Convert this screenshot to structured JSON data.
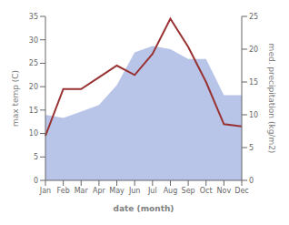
{
  "chart_data": {
    "type": "line",
    "xlabel": "date (month)",
    "ylabel": "max temp (C)",
    "y2label": "med. precipitation (kg/m2)",
    "categories": [
      "Jan",
      "Feb",
      "Mar",
      "Apr",
      "May",
      "Jun",
      "Jul",
      "Aug",
      "Sep",
      "Oct",
      "Nov",
      "Dec"
    ],
    "series": [
      {
        "type": "area",
        "axis": "y2",
        "color": "#b8c4e8",
        "values": [
          10.0,
          9.5,
          10.5,
          11.5,
          14.5,
          19.5,
          20.5,
          20.0,
          18.5,
          18.5,
          13.0,
          13.0
        ]
      },
      {
        "type": "line",
        "color": "#993333",
        "values": [
          9.5,
          19.5,
          19.5,
          22.0,
          24.5,
          22.5,
          27.0,
          34.5,
          28.5,
          21.0,
          12.0,
          11.5
        ]
      }
    ],
    "ylim": [
      0,
      35
    ],
    "yticks": [
      0,
      5,
      10,
      15,
      20,
      25,
      30,
      35
    ],
    "y2lim": [
      0,
      25
    ],
    "y2ticks": [
      0,
      5,
      10,
      15,
      20,
      25
    ],
    "grid": false
  }
}
